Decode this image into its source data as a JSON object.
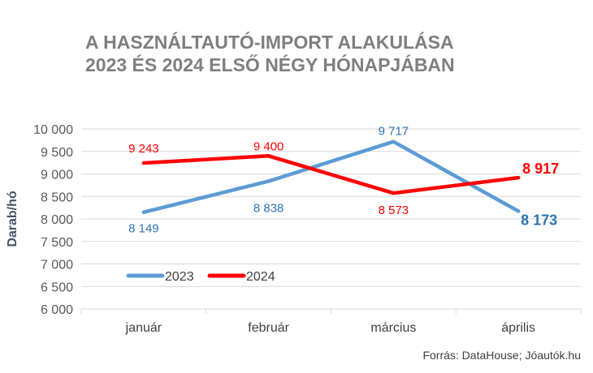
{
  "title": {
    "line1": "A HASZNÁLTAUTÓ-IMPORT ALAKULÁSA",
    "line2": "2023 ÉS 2024 ELSŐ NÉGY HÓNAPJÁBAN"
  },
  "source": "Forrás: DataHouse; Jóautók.hu",
  "colors": {
    "series_2023": "#5b9bd5",
    "series_2024": "#ff0000",
    "axis_text": "#595959",
    "grid": "#d9d9d9"
  },
  "chart_data": {
    "type": "line",
    "title": "A HASZNÁLTAUTÓ-IMPORT ALAKULÁSA 2023 ÉS 2024 ELSŐ NÉGY HÓNAPJÁBAN",
    "xlabel": "",
    "ylabel": "Darab/hó",
    "categories": [
      "január",
      "február",
      "március",
      "április"
    ],
    "ylim": [
      6000,
      10000
    ],
    "yticks": [
      6000,
      6500,
      7000,
      7500,
      8000,
      8500,
      9000,
      9500,
      10000
    ],
    "ytick_labels": [
      "6 000",
      "6 500",
      "7 000",
      "7 500",
      "8 000",
      "8 500",
      "9 000",
      "9 500",
      "10 000"
    ],
    "grid": true,
    "legend": "bottom-left",
    "series": [
      {
        "name": "2023",
        "color": "#5b9bd5",
        "values": [
          8149,
          8838,
          9717,
          8173
        ],
        "labels": [
          "8 149",
          "8 838",
          "9 717",
          "8 173"
        ]
      },
      {
        "name": "2024",
        "color": "#ff0000",
        "values": [
          9243,
          9400,
          8573,
          8917
        ],
        "labels": [
          "9 243",
          "9 400",
          "8 573",
          "8 917"
        ]
      }
    ]
  }
}
